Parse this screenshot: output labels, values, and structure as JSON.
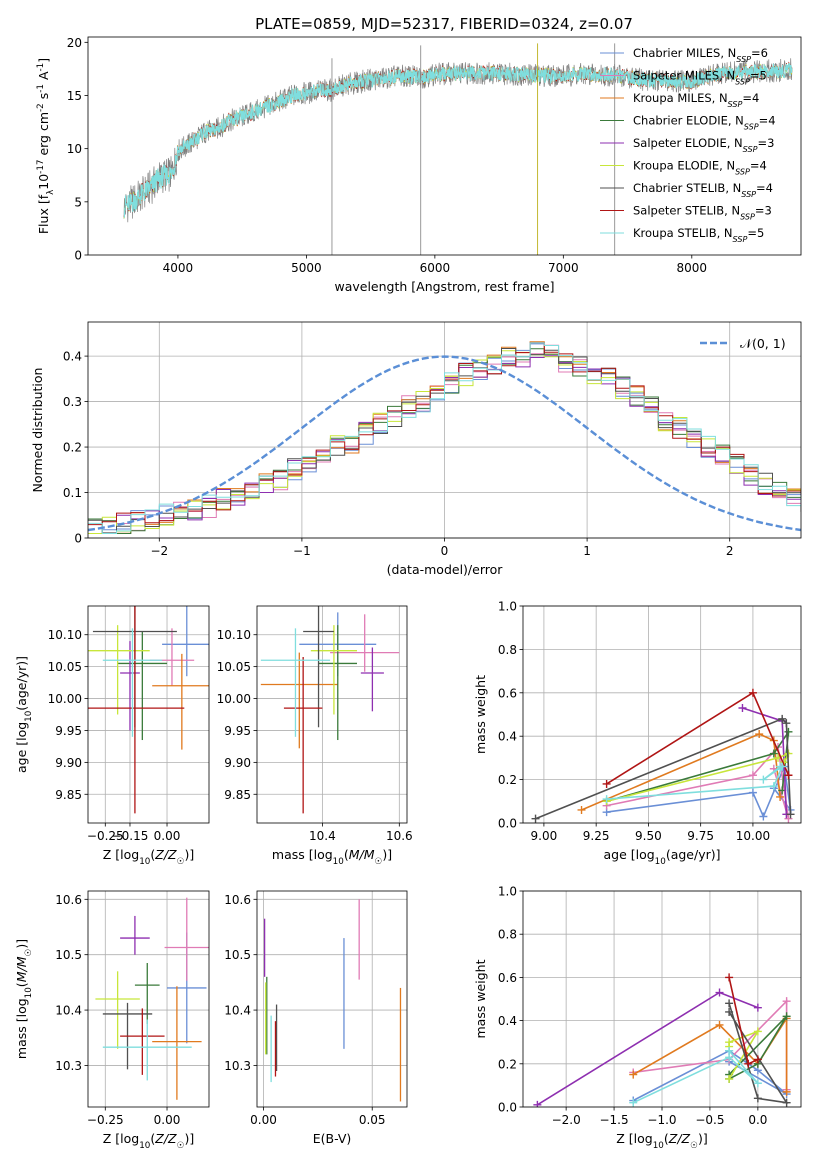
{
  "title": "PLATE=0859, MJD=52317, FIBERID=0324, z=0.07",
  "colors": {
    "Chabrier MILES": "#6a8fd6",
    "Salpeter MILES": "#e07bb5",
    "Kroupa MILES": "#e07a1f",
    "Chabrier ELODIE": "#3a7a3a",
    "Salpeter ELODIE": "#8e2fb0",
    "Kroupa ELODIE": "#c8e63a",
    "Chabrier STELIB": "#505050",
    "Salpeter STELIB": "#b01515",
    "Kroupa STELIB": "#7fdede",
    "data": "#808080",
    "normal": "#5b8fd6"
  },
  "chart_data": [
    {
      "id": "spectrum",
      "type": "line",
      "xlabel": "wavelength [Angstrom, rest frame]",
      "ylabel": "Flux [f$_\\lambda$10$^{-17}$ erg cm$^{-2}$ s$^{-1}$ A$^{-1}$]",
      "xlim": [
        3300,
        8850
      ],
      "ylim": [
        0,
        20.5
      ],
      "xticks": [
        4000,
        5000,
        6000,
        7000,
        8000
      ],
      "yticks": [
        0,
        5,
        10,
        15,
        20
      ],
      "legend_position": "top-right",
      "legend": [
        "Chabrier MILES, N_SSP=6",
        "Salpeter MILES, N_SSP=5",
        "Kroupa MILES, N_SSP=4",
        "Chabrier ELODIE, N_SSP=4",
        "Salpeter ELODIE, N_SSP=3",
        "Kroupa ELODIE, N_SSP=4",
        "Chabrier STELIB, N_SSP=4",
        "Salpeter STELIB, N_SSP=3",
        "Kroupa STELIB, N_SSP=5"
      ],
      "continuum": {
        "x": [
          3580,
          3650,
          3700,
          3800,
          3850,
          3900,
          3950,
          4000,
          4100,
          4200,
          4300,
          4400,
          4500,
          4600,
          4700,
          4800,
          4900,
          5000,
          5100,
          5200,
          5300,
          5400,
          5500,
          5600,
          5700,
          5800,
          5900,
          6000,
          6200,
          6400,
          6600,
          6800,
          7000,
          7200,
          7400,
          7600,
          7800,
          8000,
          8200,
          8400,
          8600,
          8780
        ],
        "y": [
          4.5,
          5.0,
          5.5,
          6.5,
          7.2,
          7.5,
          7.6,
          9.8,
          10.5,
          11.5,
          11.8,
          12.6,
          13.0,
          13.5,
          14.0,
          14.5,
          15.0,
          15.2,
          15.5,
          15.5,
          16.0,
          16.2,
          16.5,
          16.6,
          16.8,
          16.8,
          16.7,
          17.0,
          17.1,
          17.1,
          17.0,
          16.9,
          16.9,
          17.0,
          16.9,
          16.5,
          16.4,
          16.3,
          17.0,
          17.2,
          17.3,
          17.4
        ]
      },
      "data_spikes": [
        {
          "x": 5199,
          "y_low": 0.0
        },
        {
          "x": 5890,
          "y_low": 0.0
        },
        {
          "x": 6800,
          "y_low": 0.0
        },
        {
          "x": 7400,
          "y_low": 0.0
        }
      ]
    },
    {
      "id": "residuals",
      "type": "histogram",
      "xlabel": "(data-model)/error",
      "ylabel": "Normed distribution",
      "xlim": [
        -2.5,
        2.5
      ],
      "ylim": [
        0,
        0.475
      ],
      "xticks": [
        -2,
        -1,
        0,
        1,
        2
      ],
      "yticks": [
        0.0,
        0.1,
        0.2,
        0.3,
        0.4
      ],
      "legend": [
        "$\\mathcal{N}(0,1)$"
      ],
      "legend_label": "𝒩(0, 1)",
      "legend_position": "top-right",
      "bin_width": 0.1,
      "bin_start": -2.5,
      "base_values": [
        0.018,
        0.022,
        0.03,
        0.04,
        0.045,
        0.05,
        0.055,
        0.062,
        0.07,
        0.085,
        0.09,
        0.1,
        0.12,
        0.13,
        0.15,
        0.16,
        0.18,
        0.2,
        0.21,
        0.23,
        0.25,
        0.27,
        0.29,
        0.3,
        0.32,
        0.34,
        0.36,
        0.37,
        0.38,
        0.395,
        0.4,
        0.41,
        0.4,
        0.39,
        0.375,
        0.36,
        0.35,
        0.33,
        0.31,
        0.29,
        0.26,
        0.24,
        0.22,
        0.2,
        0.18,
        0.16,
        0.14,
        0.12,
        0.1,
        0.09,
        0.08,
        0.07,
        0.055,
        0.05,
        0.04,
        0.03,
        0.022,
        0.02,
        0.018,
        0.015
      ]
    },
    {
      "id": "age-vs-Z",
      "type": "scatter",
      "xlabel": "Z [log$_{10}$($Z/Z_\\odot$)]",
      "ylabel": "age  [log$_{10}$($age/yr$)]",
      "xlim": [
        -0.32,
        0.17
      ],
      "ylim": [
        9.805,
        10.145
      ],
      "xticks": [
        -0.25,
        -0.15,
        0.0
      ],
      "yticks": [
        9.85,
        9.9,
        9.95,
        10.0,
        10.05,
        10.1
      ],
      "points": [
        {
          "model": "Chabrier MILES",
          "x": 0.08,
          "y": 10.085,
          "xerr": 0.1,
          "yerr_low": 0.05,
          "yerr_high": 0.06
        },
        {
          "model": "Salpeter MILES",
          "x": 0.02,
          "y": 10.06,
          "xerr": 0.09,
          "yerr_low": 0.04,
          "yerr_high": 0.05
        },
        {
          "model": "Kroupa MILES",
          "x": 0.06,
          "y": 10.02,
          "xerr": 0.12,
          "yerr_low": 0.1,
          "yerr_high": 0.05
        },
        {
          "model": "Chabrier ELODIE",
          "x": -0.1,
          "y": 10.055,
          "xerr": 0.1,
          "yerr_low": 0.12,
          "yerr_high": 0.05
        },
        {
          "model": "Salpeter ELODIE",
          "x": -0.15,
          "y": 10.04,
          "xerr": 0.04,
          "yerr_low": 0.09,
          "yerr_high": 0.05
        },
        {
          "model": "Kroupa ELODIE",
          "x": -0.2,
          "y": 10.075,
          "xerr": 0.13,
          "yerr_low": 0.1,
          "yerr_high": 0.04
        },
        {
          "model": "Chabrier STELIB",
          "x": -0.13,
          "y": 10.105,
          "xerr": 0.17,
          "yerr_low": 0.15,
          "yerr_high": 0.04
        },
        {
          "model": "Salpeter STELIB",
          "x": -0.13,
          "y": 9.985,
          "xerr": 0.2,
          "yerr_low": 0.165,
          "yerr_high": 0.16
        },
        {
          "model": "Kroupa STELIB",
          "x": -0.14,
          "y": 10.06,
          "xerr": 0.12,
          "yerr_low": 0.12,
          "yerr_high": 0.05
        }
      ]
    },
    {
      "id": "age-vs-mass",
      "type": "scatter",
      "xlabel": "mass [log$_{10}$($M/M_\\odot$)]",
      "ylabel": "",
      "xlim": [
        10.23,
        10.62
      ],
      "ylim": [
        9.805,
        10.145
      ],
      "xticks": [
        10.4,
        10.6
      ],
      "yticks": [
        9.85,
        9.9,
        9.95,
        10.0,
        10.05,
        10.1
      ],
      "points": [
        {
          "model": "Chabrier MILES",
          "x": 10.44,
          "y": 10.085,
          "xerr": 0.1,
          "yerr_low": 0.05,
          "yerr_high": 0.05
        },
        {
          "model": "Salpeter MILES",
          "x": 10.51,
          "y": 10.072,
          "xerr": 0.09,
          "yerr_low": 0.03,
          "yerr_high": 0.06
        },
        {
          "model": "Kroupa MILES",
          "x": 10.34,
          "y": 10.022,
          "xerr": 0.1,
          "yerr_low": 0.1,
          "yerr_high": 0.05
        },
        {
          "model": "Chabrier ELODIE",
          "x": 10.44,
          "y": 10.055,
          "xerr": 0.05,
          "yerr_low": 0.12,
          "yerr_high": 0.06
        },
        {
          "model": "Salpeter ELODIE",
          "x": 10.53,
          "y": 10.04,
          "xerr": 0.03,
          "yerr_low": 0.06,
          "yerr_high": 0.04
        },
        {
          "model": "Kroupa ELODIE",
          "x": 10.43,
          "y": 10.075,
          "xerr": 0.06,
          "yerr_low": 0.1,
          "yerr_high": 0.04
        },
        {
          "model": "Chabrier STELIB",
          "x": 10.39,
          "y": 10.105,
          "xerr": 0.04,
          "yerr_low": 0.15,
          "yerr_high": 0.04
        },
        {
          "model": "Salpeter STELIB",
          "x": 10.35,
          "y": 9.985,
          "xerr": 0.05,
          "yerr_low": 0.165,
          "yerr_high": 0.08
        },
        {
          "model": "Kroupa STELIB",
          "x": 10.33,
          "y": 10.06,
          "xerr": 0.09,
          "yerr_low": 0.12,
          "yerr_high": 0.05
        }
      ]
    },
    {
      "id": "weight-vs-age",
      "type": "line",
      "xlabel": "age  [log$_{10}$($age/yr$)]",
      "ylabel": "mass weight",
      "xlim": [
        8.9,
        10.23
      ],
      "ylim": [
        0,
        1.0
      ],
      "xticks": [
        9.0,
        9.25,
        9.5,
        9.75,
        10.0
      ],
      "yticks": [
        0.0,
        0.2,
        0.4,
        0.6,
        0.8,
        1.0
      ],
      "series": [
        {
          "model": "Chabrier MILES",
          "x": [
            9.3,
            10.0,
            10.05,
            10.15,
            10.18,
            10.1
          ],
          "y": [
            0.05,
            0.14,
            0.03,
            0.26,
            0.06,
            0.16
          ]
        },
        {
          "model": "Salpeter MILES",
          "x": [
            9.3,
            10.0,
            10.12,
            10.17,
            10.1
          ],
          "y": [
            0.08,
            0.22,
            0.35,
            0.02,
            0.25
          ]
        },
        {
          "model": "Kroupa MILES",
          "x": [
            9.18,
            10.03,
            10.1,
            10.13
          ],
          "y": [
            0.06,
            0.41,
            0.38,
            0.12
          ]
        },
        {
          "model": "Chabrier ELODIE",
          "x": [
            9.3,
            10.1,
            10.17,
            10.14
          ],
          "y": [
            0.1,
            0.32,
            0.42,
            0.15
          ]
        },
        {
          "model": "Salpeter ELODIE",
          "x": [
            9.95,
            10.14,
            10.16
          ],
          "y": [
            0.53,
            0.47,
            0.04
          ]
        },
        {
          "model": "Kroupa ELODIE",
          "x": [
            9.3,
            10.12,
            10.17,
            10.15
          ],
          "y": [
            0.1,
            0.3,
            0.32,
            0.28
          ]
        },
        {
          "model": "Chabrier STELIB",
          "x": [
            8.96,
            10.14,
            10.16,
            10.18
          ],
          "y": [
            0.02,
            0.48,
            0.46,
            0.04
          ]
        },
        {
          "model": "Salpeter STELIB",
          "x": [
            9.3,
            10.0,
            10.17
          ],
          "y": [
            0.18,
            0.6,
            0.22
          ]
        },
        {
          "model": "Kroupa STELIB",
          "x": [
            9.3,
            10.1,
            10.14,
            10.05,
            10.13
          ],
          "y": [
            0.11,
            0.17,
            0.26,
            0.2,
            0.26
          ]
        }
      ]
    },
    {
      "id": "mass-vs-Z",
      "type": "scatter",
      "xlabel": "Z [log$_{10}$($Z/Z_\\odot$)]",
      "ylabel": "mass [log$_{10}$($M/M_\\odot$)]",
      "xlim": [
        -0.32,
        0.17
      ],
      "ylim": [
        10.225,
        10.615
      ],
      "xticks": [
        -0.25,
        0.0
      ],
      "yticks": [
        10.3,
        10.4,
        10.5,
        10.6
      ],
      "points": [
        {
          "model": "Chabrier MILES",
          "x": 0.08,
          "y": 10.44,
          "xerr": 0.08,
          "yerr_low": 0.1,
          "yerr_high": 0.1
        },
        {
          "model": "Salpeter MILES",
          "x": 0.08,
          "y": 10.513,
          "xerr": 0.09,
          "yerr_low": 0.06,
          "yerr_high": 0.09
        },
        {
          "model": "Kroupa MILES",
          "x": 0.04,
          "y": 10.343,
          "xerr": 0.1,
          "yerr_low": 0.105,
          "yerr_high": 0.1
        },
        {
          "model": "Chabrier ELODIE",
          "x": -0.08,
          "y": 10.445,
          "xerr": 0.05,
          "yerr_low": 0.07,
          "yerr_high": 0.04
        },
        {
          "model": "Salpeter ELODIE",
          "x": -0.13,
          "y": 10.53,
          "xerr": 0.06,
          "yerr_low": 0.03,
          "yerr_high": 0.04
        },
        {
          "model": "Kroupa ELODIE",
          "x": -0.2,
          "y": 10.42,
          "xerr": 0.09,
          "yerr_low": 0.09,
          "yerr_high": 0.05
        },
        {
          "model": "Chabrier STELIB",
          "x": -0.16,
          "y": 10.393,
          "xerr": 0.1,
          "yerr_low": 0.1,
          "yerr_high": 0.02
        },
        {
          "model": "Salpeter STELIB",
          "x": -0.1,
          "y": 10.353,
          "xerr": 0.09,
          "yerr_low": 0.07,
          "yerr_high": 0.05
        },
        {
          "model": "Kroupa STELIB",
          "x": -0.08,
          "y": 10.333,
          "xerr": 0.18,
          "yerr_low": 0.06,
          "yerr_high": 0.05
        }
      ]
    },
    {
      "id": "mass-vs-EBV",
      "type": "scatter",
      "xlabel": "E(B-V)",
      "ylabel": "",
      "xlim": [
        -0.003,
        0.066
      ],
      "ylim": [
        10.225,
        10.615
      ],
      "xticks": [
        0.0,
        0.05
      ],
      "yticks": [
        10.3,
        10.4,
        10.5,
        10.6
      ],
      "points": [
        {
          "model": "Chabrier MILES",
          "x": 0.037,
          "y": 10.43,
          "xerr": 0,
          "yerr_low": 0.1,
          "yerr_high": 0.1
        },
        {
          "model": "Salpeter MILES",
          "x": 0.044,
          "y": 10.53,
          "xerr": 0,
          "yerr_low": 0.075,
          "yerr_high": 0.07
        },
        {
          "model": "Kroupa MILES",
          "x": 0.063,
          "y": 10.34,
          "xerr": 0,
          "yerr_low": 0.105,
          "yerr_high": 0.1
        },
        {
          "model": "Chabrier ELODIE",
          "x": 0.0015,
          "y": 10.42,
          "xerr": 0,
          "yerr_low": 0.1,
          "yerr_high": 0.04
        },
        {
          "model": "Salpeter ELODIE",
          "x": 0.0005,
          "y": 10.52,
          "xerr": 0,
          "yerr_low": 0.06,
          "yerr_high": 0.045
        },
        {
          "model": "Kroupa ELODIE",
          "x": 0.001,
          "y": 10.39,
          "xerr": 0,
          "yerr_low": 0.07,
          "yerr_high": 0.06
        },
        {
          "model": "Chabrier STELIB",
          "x": 0.006,
          "y": 10.35,
          "xerr": 0,
          "yerr_low": 0.06,
          "yerr_high": 0.06
        },
        {
          "model": "Salpeter STELIB",
          "x": 0.0055,
          "y": 10.33,
          "xerr": 0,
          "yerr_low": 0.05,
          "yerr_high": 0.05
        },
        {
          "model": "Kroupa STELIB",
          "x": 0.0035,
          "y": 10.33,
          "xerr": 0,
          "yerr_low": 0.06,
          "yerr_high": 0.06
        }
      ]
    },
    {
      "id": "weight-vs-Z",
      "type": "line",
      "xlabel": "Z [log$_{10}$($Z/Z_\\odot$)]",
      "ylabel": "mass weight",
      "xlim": [
        -2.45,
        0.45
      ],
      "ylim": [
        0,
        1.0
      ],
      "xticks": [
        -2.0,
        -1.5,
        -1.0,
        -0.5,
        0.0
      ],
      "yticks": [
        0.0,
        0.2,
        0.4,
        0.6,
        0.8,
        1.0
      ],
      "series": [
        {
          "model": "Chabrier MILES",
          "x": [
            -1.3,
            -0.3,
            0.0,
            0.3,
            -0.3
          ],
          "y": [
            0.03,
            0.26,
            0.17,
            0.06,
            0.21
          ]
        },
        {
          "model": "Salpeter MILES",
          "x": [
            -1.3,
            -0.3,
            0.3,
            0.3
          ],
          "y": [
            0.16,
            0.22,
            0.49,
            0.08
          ]
        },
        {
          "model": "Kroupa MILES",
          "x": [
            -1.3,
            -0.4,
            0.0,
            0.3,
            0.3
          ],
          "y": [
            0.15,
            0.38,
            0.2,
            0.41,
            0.07
          ]
        },
        {
          "model": "Chabrier ELODIE",
          "x": [
            -0.3,
            0.0,
            0.3,
            -0.3
          ],
          "y": [
            0.13,
            0.2,
            0.42,
            0.15
          ]
        },
        {
          "model": "Salpeter ELODIE",
          "x": [
            -2.3,
            -0.4,
            0.0
          ],
          "y": [
            0.01,
            0.53,
            0.46
          ]
        },
        {
          "model": "Kroupa ELODIE",
          "x": [
            -0.3,
            0.0,
            -0.3,
            -0.3
          ],
          "y": [
            0.13,
            0.35,
            0.3,
            0.28
          ]
        },
        {
          "model": "Chabrier STELIB",
          "x": [
            -0.3,
            0.0,
            0.3,
            -0.3
          ],
          "y": [
            0.48,
            0.04,
            0.02,
            0.44
          ]
        },
        {
          "model": "Salpeter STELIB",
          "x": [
            -0.3,
            -0.1,
            0.0
          ],
          "y": [
            0.6,
            0.2,
            0.22
          ]
        },
        {
          "model": "Kroupa STELIB",
          "x": [
            -1.3,
            -0.3,
            0.0,
            -0.3
          ],
          "y": [
            0.02,
            0.23,
            0.11,
            0.26
          ]
        }
      ]
    }
  ]
}
